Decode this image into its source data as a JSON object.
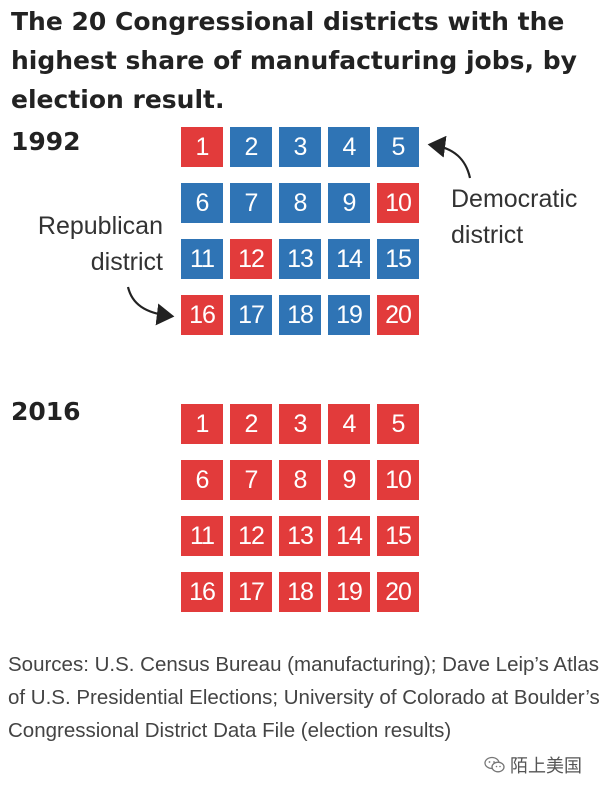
{
  "title": "The 20 Congressional districts with the highest share of manufacturing jobs, by election result.",
  "labels": {
    "democratic_line1": "Democratic",
    "democratic_line2": "district",
    "republican_line1": "Republican",
    "republican_line2": "district"
  },
  "colors": {
    "republican": "#e23b3b",
    "democratic": "#2f74b5"
  },
  "chart_data": [
    {
      "type": "table",
      "year": "1992",
      "columns": 5,
      "districts": [
        {
          "n": "1",
          "party": "R"
        },
        {
          "n": "2",
          "party": "D"
        },
        {
          "n": "3",
          "party": "D"
        },
        {
          "n": "4",
          "party": "D"
        },
        {
          "n": "5",
          "party": "D"
        },
        {
          "n": "6",
          "party": "D"
        },
        {
          "n": "7",
          "party": "D"
        },
        {
          "n": "8",
          "party": "D"
        },
        {
          "n": "9",
          "party": "D"
        },
        {
          "n": "10",
          "party": "R"
        },
        {
          "n": "11",
          "party": "D"
        },
        {
          "n": "12",
          "party": "R"
        },
        {
          "n": "13",
          "party": "D"
        },
        {
          "n": "14",
          "party": "D"
        },
        {
          "n": "15",
          "party": "D"
        },
        {
          "n": "16",
          "party": "R"
        },
        {
          "n": "17",
          "party": "D"
        },
        {
          "n": "18",
          "party": "D"
        },
        {
          "n": "19",
          "party": "D"
        },
        {
          "n": "20",
          "party": "R"
        }
      ]
    },
    {
      "type": "table",
      "year": "2016",
      "columns": 5,
      "districts": [
        {
          "n": "1",
          "party": "R"
        },
        {
          "n": "2",
          "party": "R"
        },
        {
          "n": "3",
          "party": "R"
        },
        {
          "n": "4",
          "party": "R"
        },
        {
          "n": "5",
          "party": "R"
        },
        {
          "n": "6",
          "party": "R"
        },
        {
          "n": "7",
          "party": "R"
        },
        {
          "n": "8",
          "party": "R"
        },
        {
          "n": "9",
          "party": "R"
        },
        {
          "n": "10",
          "party": "R"
        },
        {
          "n": "11",
          "party": "R"
        },
        {
          "n": "12",
          "party": "R"
        },
        {
          "n": "13",
          "party": "R"
        },
        {
          "n": "14",
          "party": "R"
        },
        {
          "n": "15",
          "party": "R"
        },
        {
          "n": "16",
          "party": "R"
        },
        {
          "n": "17",
          "party": "R"
        },
        {
          "n": "18",
          "party": "R"
        },
        {
          "n": "19",
          "party": "R"
        },
        {
          "n": "20",
          "party": "R"
        }
      ]
    }
  ],
  "source": "Sources: U.S. Census Bureau (manufacturing); Dave Leip’s Atlas of U.S. Presidential Elections; University of Colorado at Boulder’s Congressional District Data File (election results)",
  "watermark": {
    "icon": "wechat-icon",
    "text": "陌上美国"
  }
}
